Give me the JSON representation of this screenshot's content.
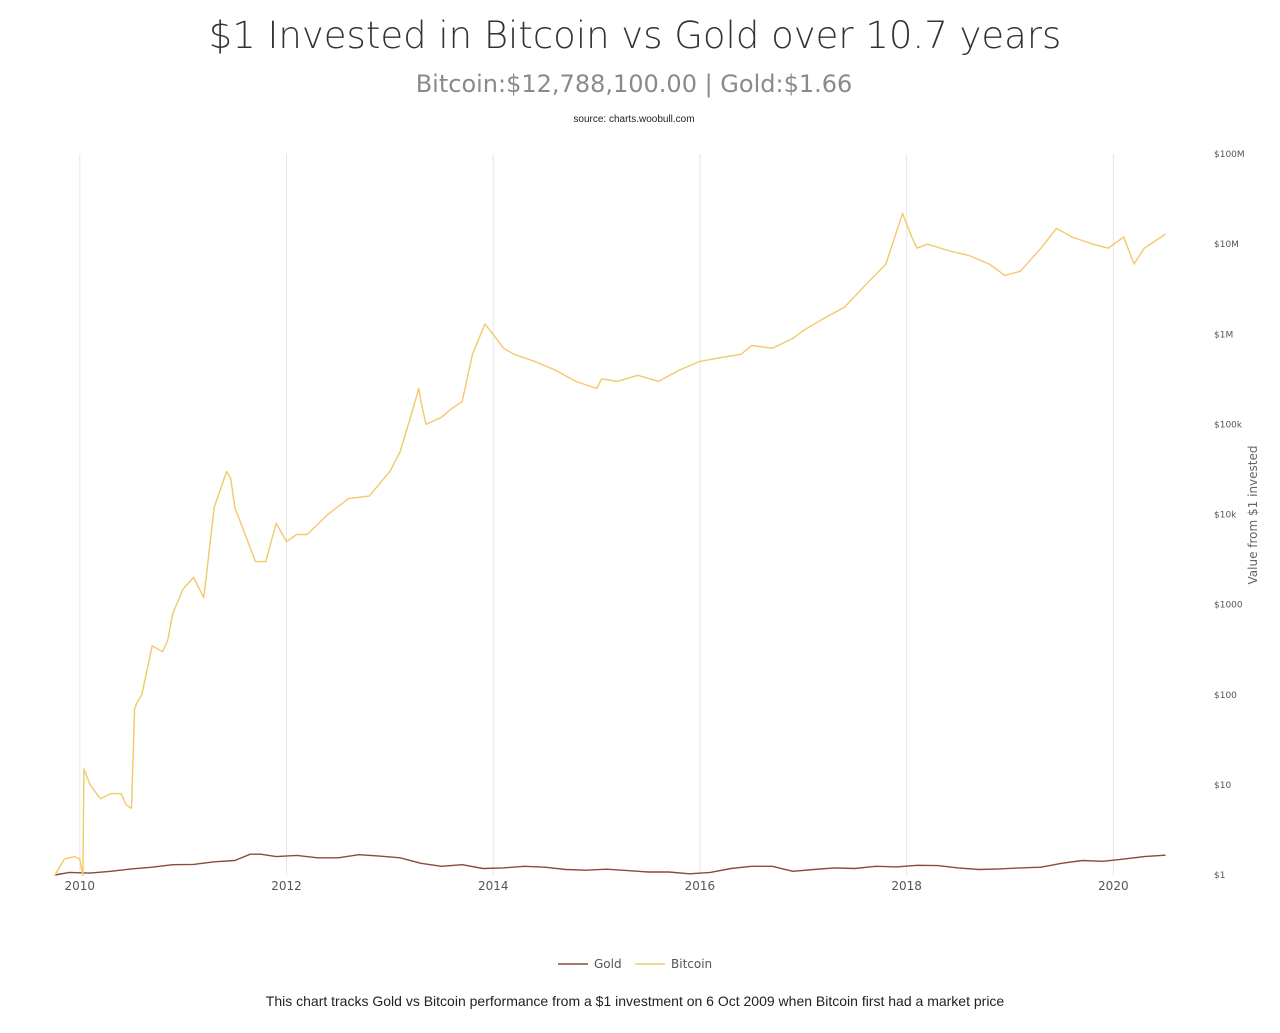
{
  "header": {
    "title": "$1 Invested in Bitcoin vs Gold over 10.7 years",
    "subtitle": "Bitcoin:$12,788,100.00 | Gold:$1.66",
    "source": "source: charts.woobull.com"
  },
  "footer": {
    "note": "This chart tracks Gold vs Bitcoin performance from a $1 investment on 6 Oct 2009 when Bitcoin first had a market price"
  },
  "chart_data": {
    "type": "line",
    "title": "$1 Invested in Bitcoin vs Gold over 10.7 years",
    "subtitle": "Bitcoin:$12,788,100.00 | Gold:$1.66",
    "xlabel": "",
    "ylabel": "Value from $1 invested",
    "yscale": "log",
    "ylim": [
      1,
      100000000
    ],
    "xlim": [
      2009.76,
      2020.5
    ],
    "grid": "vertical",
    "legend": "bottom-center",
    "colors": {
      "Gold": "#8b4a3c",
      "Bitcoin": "#f2c96b",
      "grid": "#e6e6e6"
    },
    "x_ticks": [
      {
        "value": 2010,
        "label": "2010"
      },
      {
        "value": 2012,
        "label": "2012"
      },
      {
        "value": 2014,
        "label": "2014"
      },
      {
        "value": 2016,
        "label": "2016"
      },
      {
        "value": 2018,
        "label": "2018"
      },
      {
        "value": 2020,
        "label": "2020"
      }
    ],
    "y_ticks": [
      {
        "value": 1,
        "label": "$1"
      },
      {
        "value": 10,
        "label": "$10"
      },
      {
        "value": 100,
        "label": "$100"
      },
      {
        "value": 1000,
        "label": "$1000"
      },
      {
        "value": 10000,
        "label": "$10k"
      },
      {
        "value": 100000,
        "label": "$100k"
      },
      {
        "value": 1000000,
        "label": "$1M"
      },
      {
        "value": 10000000,
        "label": "$10M"
      },
      {
        "value": 100000000,
        "label": "$100M"
      }
    ],
    "series": [
      {
        "name": "Gold",
        "x": [
          2009.76,
          2009.9,
          2010.1,
          2010.3,
          2010.5,
          2010.7,
          2010.9,
          2011.1,
          2011.3,
          2011.5,
          2011.65,
          2011.75,
          2011.9,
          2012.1,
          2012.3,
          2012.5,
          2012.7,
          2012.9,
          2013.1,
          2013.3,
          2013.5,
          2013.7,
          2013.9,
          2014.1,
          2014.3,
          2014.5,
          2014.7,
          2014.9,
          2015.1,
          2015.3,
          2015.5,
          2015.7,
          2015.9,
          2016.1,
          2016.3,
          2016.5,
          2016.7,
          2016.9,
          2017.1,
          2017.3,
          2017.5,
          2017.7,
          2017.9,
          2018.1,
          2018.3,
          2018.5,
          2018.7,
          2018.9,
          2019.1,
          2019.3,
          2019.5,
          2019.7,
          2019.9,
          2020.1,
          2020.2,
          2020.3,
          2020.5
        ],
        "values": [
          1.0,
          1.07,
          1.05,
          1.1,
          1.17,
          1.22,
          1.3,
          1.31,
          1.4,
          1.45,
          1.7,
          1.7,
          1.6,
          1.65,
          1.55,
          1.55,
          1.68,
          1.62,
          1.55,
          1.35,
          1.25,
          1.3,
          1.18,
          1.2,
          1.25,
          1.22,
          1.15,
          1.13,
          1.16,
          1.12,
          1.08,
          1.08,
          1.03,
          1.07,
          1.18,
          1.25,
          1.25,
          1.1,
          1.15,
          1.2,
          1.18,
          1.25,
          1.23,
          1.28,
          1.27,
          1.2,
          1.15,
          1.17,
          1.2,
          1.22,
          1.35,
          1.45,
          1.42,
          1.5,
          1.55,
          1.6,
          1.66
        ]
      },
      {
        "name": "Bitcoin",
        "x": [
          2009.76,
          2009.85,
          2009.95,
          2010.0,
          2010.03,
          2010.04,
          2010.1,
          2010.2,
          2010.3,
          2010.4,
          2010.45,
          2010.5,
          2010.53,
          2010.55,
          2010.6,
          2010.7,
          2010.8,
          2010.85,
          2010.9,
          2011.0,
          2011.1,
          2011.2,
          2011.3,
          2011.42,
          2011.46,
          2011.5,
          2011.6,
          2011.7,
          2011.8,
          2011.9,
          2012.0,
          2012.1,
          2012.2,
          2012.4,
          2012.6,
          2012.8,
          2013.0,
          2013.1,
          2013.2,
          2013.28,
          2013.3,
          2013.35,
          2013.5,
          2013.6,
          2013.7,
          2013.8,
          2013.92,
          2014.0,
          2014.1,
          2014.2,
          2014.4,
          2014.6,
          2014.8,
          2015.0,
          2015.05,
          2015.2,
          2015.4,
          2015.6,
          2015.8,
          2016.0,
          2016.2,
          2016.4,
          2016.5,
          2016.7,
          2016.9,
          2017.0,
          2017.2,
          2017.4,
          2017.6,
          2017.8,
          2017.96,
          2018.05,
          2018.1,
          2018.2,
          2018.4,
          2018.6,
          2018.8,
          2018.95,
          2019.1,
          2019.3,
          2019.45,
          2019.6,
          2019.8,
          2019.95,
          2020.1,
          2020.2,
          2020.3,
          2020.5
        ],
        "values": [
          1.0,
          1.5,
          1.6,
          1.5,
          0.99,
          15,
          10,
          7,
          8,
          8,
          6,
          5.5,
          70,
          80,
          100,
          350,
          300,
          400,
          800,
          1500,
          2000,
          1200,
          12000,
          30000,
          25000,
          12000,
          6000,
          3000,
          3000,
          8000,
          5000,
          6000,
          6000,
          10000,
          15000,
          16000,
          30000,
          50000,
          120000,
          250000,
          180000,
          100000,
          120000,
          150000,
          180000,
          600000,
          1300000,
          1000000,
          700000,
          600000,
          500000,
          400000,
          300000,
          250000,
          320000,
          300000,
          350000,
          300000,
          400000,
          500000,
          550000,
          600000,
          750000,
          700000,
          900000,
          1100000,
          1500000,
          2000000,
          3500000,
          6000000,
          22000000,
          12000000,
          9000000,
          10000000,
          8500000,
          7500000,
          6000000,
          4500000,
          5000000,
          9000000,
          15000000,
          12000000,
          10000000,
          9000000,
          12000000,
          6000000,
          9000000,
          12788100
        ]
      }
    ]
  }
}
